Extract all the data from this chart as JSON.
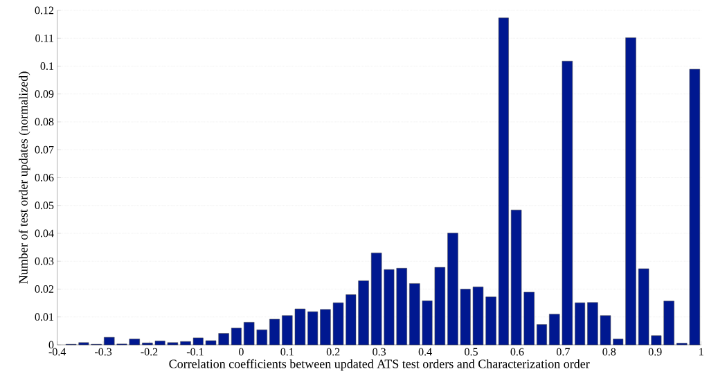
{
  "chart_data": {
    "type": "histogram",
    "xlabel": "Correlation coefficients between updated ATS test orders and Characterization order",
    "ylabel": "Number of test order updates (normalized)",
    "bins": [
      -0.384,
      -0.356,
      -0.329,
      -0.301,
      -0.273,
      -0.246,
      -0.218,
      -0.19,
      -0.163,
      -0.135,
      -0.107,
      -0.08,
      -0.052,
      -0.024,
      0.003,
      0.031,
      0.059,
      0.086,
      0.114,
      0.142,
      0.169,
      0.197,
      0.225,
      0.252,
      0.28,
      0.308,
      0.335,
      0.363,
      0.391,
      0.418,
      0.446,
      0.474,
      0.501,
      0.529,
      0.557,
      0.584,
      0.612,
      0.64,
      0.667,
      0.695,
      0.723,
      0.75,
      0.778,
      0.806,
      0.833,
      0.861,
      0.889,
      0.916,
      0.944,
      0.972,
      1.0
    ],
    "values": [
      0.0002,
      0.0008,
      0.0002,
      0.0027,
      0.0003,
      0.0021,
      0.0007,
      0.0014,
      0.0008,
      0.0012,
      0.0025,
      0.0015,
      0.0041,
      0.006,
      0.0081,
      0.0054,
      0.0092,
      0.0105,
      0.0129,
      0.0119,
      0.0127,
      0.0151,
      0.018,
      0.023,
      0.033,
      0.027,
      0.0275,
      0.022,
      0.0158,
      0.0278,
      0.0401,
      0.02,
      0.0208,
      0.0172,
      0.1173,
      0.0484,
      0.0189,
      0.0073,
      0.011,
      0.1018,
      0.0151,
      0.0152,
      0.0105,
      0.0021,
      0.1102,
      0.0273,
      0.0033,
      0.0157,
      0.0006,
      0.0989
    ],
    "color": "#001890",
    "xlim": [
      -0.4,
      1
    ],
    "ylim": [
      0,
      0.12
    ],
    "xticks": [
      -0.4,
      -0.3,
      -0.2,
      -0.1,
      0,
      0.1,
      0.2,
      0.3,
      0.4,
      0.5,
      0.6,
      0.7,
      0.8,
      0.9,
      1
    ],
    "yticks": [
      0,
      0.01,
      0.02,
      0.03,
      0.04,
      0.05,
      0.06,
      0.07,
      0.08,
      0.09,
      0.1,
      0.11,
      0.12
    ],
    "grid": "y"
  }
}
